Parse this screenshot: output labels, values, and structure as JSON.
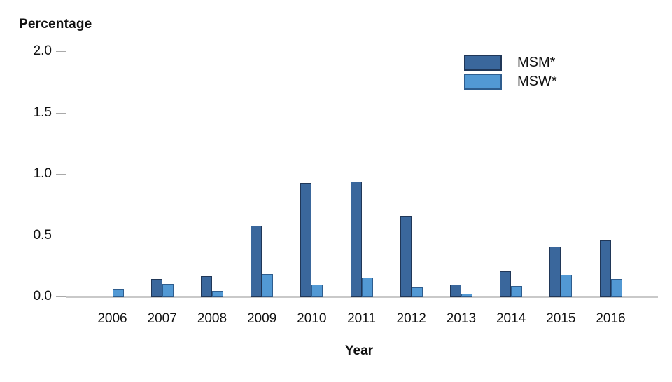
{
  "chart_data": {
    "type": "bar",
    "title": "",
    "xlabel": "Year",
    "ylabel": "Percentage",
    "categories": [
      "2006",
      "2007",
      "2008",
      "2009",
      "2010",
      "2011",
      "2012",
      "2013",
      "2014",
      "2015",
      "2016"
    ],
    "series": [
      {
        "name": "MSM*",
        "fill_color": "#3a679c",
        "border_color": "#203758",
        "values": [
          null,
          0.15,
          0.17,
          0.58,
          0.93,
          0.94,
          0.66,
          0.1,
          0.21,
          0.41,
          0.46
        ]
      },
      {
        "name": "MSW*",
        "fill_color": "#5299d4",
        "border_color": "#2e5d8e",
        "values": [
          0.06,
          0.11,
          0.05,
          0.19,
          0.1,
          0.16,
          0.08,
          0.03,
          0.09,
          0.18,
          0.15
        ]
      }
    ],
    "ylim": [
      0,
      2.0
    ],
    "yticks": [
      0.0,
      0.5,
      1.0,
      1.5,
      2.0
    ],
    "ytick_labels": [
      "0.0",
      "0.5",
      "1.0",
      "1.5",
      "2.0"
    ],
    "grid": false,
    "legend_position": "top-right",
    "axis_color": "#a9a9a9",
    "baseline_color": "#c9c9c9"
  }
}
